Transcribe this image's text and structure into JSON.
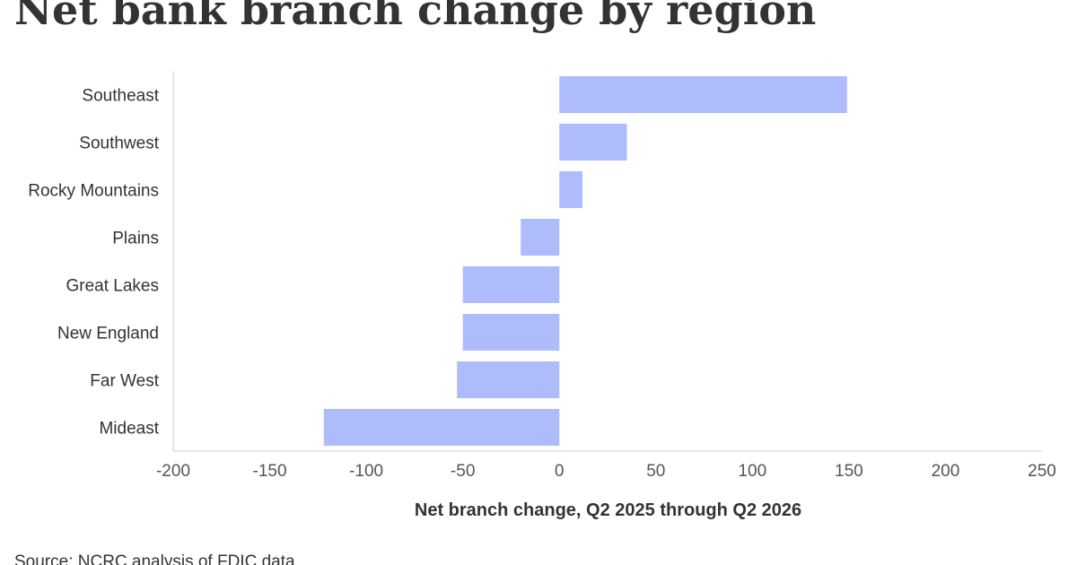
{
  "title": "Net bank branch change by region",
  "source": "Source: NCRC analysis of FDIC data",
  "colors": {
    "bar": "#aebcfb",
    "axis": "#dddddd",
    "text": "#333333"
  },
  "chart_data": {
    "type": "bar",
    "orientation": "horizontal",
    "categories": [
      "Southeast",
      "Southwest",
      "Rocky Mountains",
      "Plains",
      "Great Lakes",
      "New England",
      "Far West",
      "Mideast"
    ],
    "values": [
      149,
      35,
      12,
      -20,
      -50,
      -50,
      -53,
      -122
    ],
    "xlabel": "Net branch change, Q2 2025 through Q2 2026",
    "ylabel": "",
    "xlim": [
      -200,
      250
    ],
    "xticks": [
      -200,
      -150,
      -100,
      -50,
      0,
      50,
      100,
      150,
      200,
      250
    ],
    "grid": false,
    "legend": "none"
  }
}
